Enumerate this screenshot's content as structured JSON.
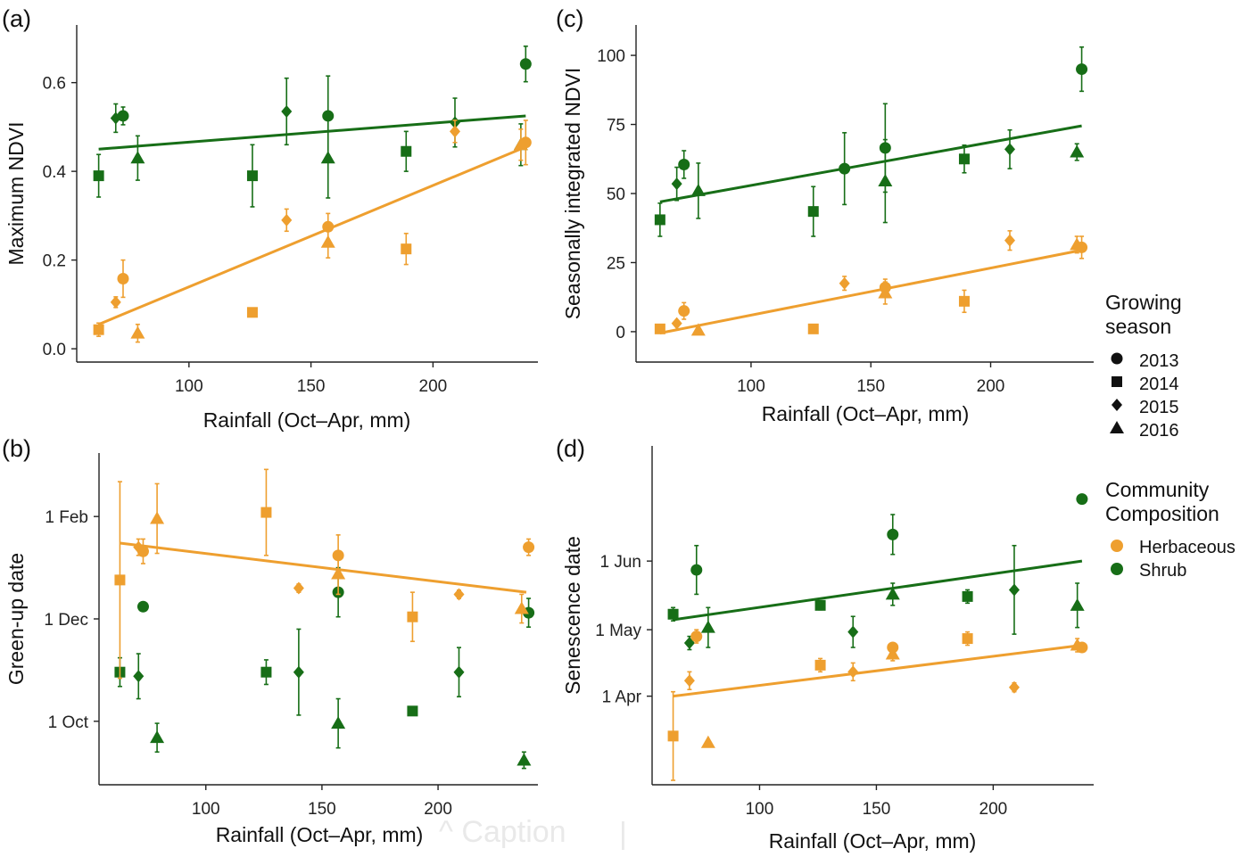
{
  "colors": {
    "herbaceous": "#EE9F2F",
    "shrub": "#176E17",
    "axis": "#222222"
  },
  "legend": {
    "season_title": "Growing\nseason",
    "season_items": [
      {
        "label": "2013",
        "shape": "circle"
      },
      {
        "label": "2014",
        "shape": "square"
      },
      {
        "label": "2015",
        "shape": "diamond"
      },
      {
        "label": "2016",
        "shape": "triangle"
      }
    ],
    "community_title": "Community\nComposition",
    "community_items": [
      {
        "label": "Herbaceous",
        "color_key": "herbaceous"
      },
      {
        "label": "Shrub",
        "color_key": "shrub"
      }
    ]
  },
  "overlay": {
    "caption_text": "^ Caption",
    "divider": "|"
  },
  "chart_data": [
    {
      "panel": "(a)",
      "type": "scatter",
      "xlabel": "Rainfall (Oct–Apr, mm)",
      "ylabel": "Maximum NDVI",
      "xlim": [
        54,
        243
      ],
      "ylim": [
        -0.03,
        0.73
      ],
      "xticks": [
        {
          "v": 100,
          "label": "100"
        },
        {
          "v": 150,
          "label": "150"
        },
        {
          "v": 200,
          "label": "200"
        }
      ],
      "yticks": [
        {
          "v": 0,
          "label": "0.0"
        },
        {
          "v": 0.2,
          "label": "0.2"
        },
        {
          "v": 0.4,
          "label": "0.4"
        },
        {
          "v": 0.6,
          "label": "0.6"
        }
      ],
      "series": [
        {
          "name": "Shrub",
          "color_key": "shrub",
          "points": [
            {
              "x": 63,
              "y": 0.39,
              "err": 0.048,
              "shape": "square"
            },
            {
              "x": 70,
              "y": 0.52,
              "err": 0.032,
              "shape": "diamond"
            },
            {
              "x": 73,
              "y": 0.525,
              "err": 0.02,
              "shape": "circle"
            },
            {
              "x": 79,
              "y": 0.43,
              "err": 0.05,
              "shape": "triangle"
            },
            {
              "x": 126,
              "y": 0.39,
              "err": 0.07,
              "shape": "square"
            },
            {
              "x": 140,
              "y": 0.535,
              "err": 0.075,
              "shape": "diamond"
            },
            {
              "x": 157,
              "y": 0.525,
              "err": 0.09,
              "shape": "circle"
            },
            {
              "x": 157,
              "y": 0.43,
              "err": 0.09,
              "shape": "triangle"
            },
            {
              "x": 189,
              "y": 0.445,
              "err": 0.045,
              "shape": "square"
            },
            {
              "x": 209,
              "y": 0.51,
              "err": 0.055,
              "shape": "diamond"
            },
            {
              "x": 238,
              "y": 0.642,
              "err": 0.04,
              "shape": "circle"
            },
            {
              "x": 236,
              "y": 0.46,
              "err": 0.047,
              "shape": "triangle"
            }
          ],
          "trend": [
            [
              63,
              0.45
            ],
            [
              238,
              0.525
            ]
          ]
        },
        {
          "name": "Herbaceous",
          "color_key": "herbaceous",
          "points": [
            {
              "x": 63,
              "y": 0.043,
              "err": 0.015,
              "shape": "square"
            },
            {
              "x": 70,
              "y": 0.105,
              "err": 0.012,
              "shape": "diamond"
            },
            {
              "x": 73,
              "y": 0.158,
              "err": 0.042,
              "shape": "circle"
            },
            {
              "x": 79,
              "y": 0.035,
              "err": 0.02,
              "shape": "triangle"
            },
            {
              "x": 126,
              "y": 0.082,
              "err": 0.01,
              "shape": "square"
            },
            {
              "x": 140,
              "y": 0.29,
              "err": 0.025,
              "shape": "diamond"
            },
            {
              "x": 157,
              "y": 0.275,
              "err": 0.03,
              "shape": "circle"
            },
            {
              "x": 157,
              "y": 0.24,
              "err": 0.035,
              "shape": "triangle"
            },
            {
              "x": 189,
              "y": 0.225,
              "err": 0.035,
              "shape": "square"
            },
            {
              "x": 209,
              "y": 0.49,
              "err": 0.025,
              "shape": "diamond"
            },
            {
              "x": 238,
              "y": 0.465,
              "err": 0.05,
              "shape": "circle"
            },
            {
              "x": 236,
              "y": 0.46,
              "err": 0.035,
              "shape": "triangle"
            }
          ],
          "trend": [
            [
              63,
              0.055
            ],
            [
              238,
              0.455
            ]
          ]
        }
      ]
    },
    {
      "panel": "(b)",
      "type": "scatter",
      "xlabel": "Rainfall (Oct–Apr, mm)",
      "ylabel": "Green-up date",
      "xlim": [
        54,
        243
      ],
      "ylim": [
        0,
        162
      ],
      "xticks": [
        {
          "v": 100,
          "label": "100"
        },
        {
          "v": 150,
          "label": "150"
        },
        {
          "v": 200,
          "label": "200"
        }
      ],
      "yticks": [
        {
          "v": 31,
          "label": "1 Oct"
        },
        {
          "v": 81,
          "label": "1 Dec"
        },
        {
          "v": 131,
          "label": "1 Feb"
        }
      ],
      "series": [
        {
          "name": "Shrub",
          "color_key": "shrub",
          "points": [
            {
              "x": 63,
              "y": 55,
              "err": 7,
              "shape": "square"
            },
            {
              "x": 71,
              "y": 53,
              "err": 11,
              "shape": "diamond"
            },
            {
              "x": 73,
              "y": 87,
              "err": 0,
              "shape": "circle"
            },
            {
              "x": 79,
              "y": 23,
              "err": 7,
              "shape": "triangle"
            },
            {
              "x": 126,
              "y": 55,
              "err": 6,
              "shape": "square"
            },
            {
              "x": 140,
              "y": 55,
              "err": 21,
              "shape": "diamond"
            },
            {
              "x": 157,
              "y": 94,
              "err": 12,
              "shape": "circle"
            },
            {
              "x": 157,
              "y": 30,
              "err": 12,
              "shape": "triangle"
            },
            {
              "x": 189,
              "y": 36,
              "err": 0,
              "shape": "square"
            },
            {
              "x": 209,
              "y": 55,
              "err": 12,
              "shape": "diamond"
            },
            {
              "x": 239,
              "y": 84,
              "err": 7,
              "shape": "circle"
            },
            {
              "x": 237,
              "y": 12,
              "err": 4,
              "shape": "triangle"
            }
          ]
        },
        {
          "name": "Herbaceous",
          "color_key": "herbaceous",
          "points": [
            {
              "x": 63,
              "y": 100,
              "err": 48,
              "shape": "square"
            },
            {
              "x": 71,
              "y": 116,
              "err": 4,
              "shape": "diamond"
            },
            {
              "x": 73,
              "y": 114,
              "err": 6,
              "shape": "circle"
            },
            {
              "x": 79,
              "y": 130,
              "err": 17,
              "shape": "triangle"
            },
            {
              "x": 126,
              "y": 133,
              "err": 21,
              "shape": "square"
            },
            {
              "x": 140,
              "y": 96,
              "err": 2,
              "shape": "diamond"
            },
            {
              "x": 157,
              "y": 112,
              "err": 10,
              "shape": "circle"
            },
            {
              "x": 157,
              "y": 103,
              "err": 10,
              "shape": "triangle"
            },
            {
              "x": 189,
              "y": 82,
              "err": 12,
              "shape": "square"
            },
            {
              "x": 209,
              "y": 93,
              "err": 2,
              "shape": "diamond"
            },
            {
              "x": 239,
              "y": 116,
              "err": 4,
              "shape": "circle"
            },
            {
              "x": 236,
              "y": 86,
              "err": 7,
              "shape": "triangle"
            }
          ],
          "trend": [
            [
              63,
              118
            ],
            [
              238,
              94
            ]
          ]
        }
      ]
    },
    {
      "panel": "(c)",
      "type": "scatter",
      "xlabel": "Rainfall (Oct–Apr, mm)",
      "ylabel": "Seasonally integrated  NDVI",
      "xlim": [
        52,
        243
      ],
      "ylim": [
        -11,
        111
      ],
      "xticks": [
        {
          "v": 100,
          "label": "100"
        },
        {
          "v": 150,
          "label": "150"
        },
        {
          "v": 200,
          "label": "200"
        }
      ],
      "yticks": [
        {
          "v": 0,
          "label": "0"
        },
        {
          "v": 25,
          "label": "25"
        },
        {
          "v": 50,
          "label": "50"
        },
        {
          "v": 75,
          "label": "75"
        },
        {
          "v": 100,
          "label": "100"
        }
      ],
      "series": [
        {
          "name": "Shrub",
          "color_key": "shrub",
          "points": [
            {
              "x": 62,
              "y": 40.5,
              "err": 6,
              "shape": "square"
            },
            {
              "x": 69,
              "y": 53.5,
              "err": 6,
              "shape": "diamond"
            },
            {
              "x": 72,
              "y": 60.5,
              "err": 5,
              "shape": "circle"
            },
            {
              "x": 78,
              "y": 51,
              "err": 10,
              "shape": "triangle"
            },
            {
              "x": 126,
              "y": 43.5,
              "err": 9,
              "shape": "square"
            },
            {
              "x": 139,
              "y": 59,
              "err": 13,
              "shape": "circle"
            },
            {
              "x": 156,
              "y": 66.5,
              "err": 16,
              "shape": "circle"
            },
            {
              "x": 156,
              "y": 54.5,
              "err": 15,
              "shape": "triangle"
            },
            {
              "x": 189,
              "y": 62.5,
              "err": 5,
              "shape": "square"
            },
            {
              "x": 208,
              "y": 66,
              "err": 7,
              "shape": "diamond"
            },
            {
              "x": 238,
              "y": 95,
              "err": 8,
              "shape": "circle"
            },
            {
              "x": 236,
              "y": 65,
              "err": 3,
              "shape": "triangle"
            }
          ],
          "trend": [
            [
              62,
              47
            ],
            [
              238,
              74.5
            ]
          ]
        },
        {
          "name": "Herbaceous",
          "color_key": "herbaceous",
          "points": [
            {
              "x": 62,
              "y": 1,
              "err": 1,
              "shape": "square"
            },
            {
              "x": 69,
              "y": 3,
              "err": 1,
              "shape": "diamond"
            },
            {
              "x": 72,
              "y": 7.5,
              "err": 3,
              "shape": "circle"
            },
            {
              "x": 78,
              "y": 0.5,
              "err": 1,
              "shape": "triangle"
            },
            {
              "x": 126,
              "y": 1,
              "err": 1,
              "shape": "square"
            },
            {
              "x": 139,
              "y": 17.5,
              "err": 2.5,
              "shape": "diamond"
            },
            {
              "x": 156,
              "y": 16,
              "err": 3,
              "shape": "circle"
            },
            {
              "x": 156,
              "y": 14,
              "err": 4,
              "shape": "triangle"
            },
            {
              "x": 189,
              "y": 11,
              "err": 4,
              "shape": "square"
            },
            {
              "x": 208,
              "y": 33,
              "err": 3.5,
              "shape": "diamond"
            },
            {
              "x": 238,
              "y": 30.5,
              "err": 4,
              "shape": "circle"
            },
            {
              "x": 236,
              "y": 31.5,
              "err": 3,
              "shape": "triangle"
            }
          ],
          "trend": [
            [
              62,
              -0.5
            ],
            [
              238,
              29.5
            ]
          ]
        }
      ]
    },
    {
      "panel": "(d)",
      "type": "scatter",
      "xlabel": "Rainfall (Oct–Apr, mm)",
      "ylabel": "Senescence date",
      "xlim": [
        54,
        243
      ],
      "ylim": [
        -40,
        113
      ],
      "xticks": [
        {
          "v": 100,
          "label": "100"
        },
        {
          "v": 150,
          "label": "150"
        },
        {
          "v": 200,
          "label": "200"
        }
      ],
      "yticks": [
        {
          "v": 0,
          "label": "1 Apr"
        },
        {
          "v": 30,
          "label": "1 May"
        },
        {
          "v": 61,
          "label": "1 Jun"
        }
      ],
      "series": [
        {
          "name": "Shrub",
          "color_key": "shrub",
          "points": [
            {
              "x": 63,
              "y": 37,
              "err": 3,
              "shape": "square"
            },
            {
              "x": 70,
              "y": 24,
              "err": 3,
              "shape": "diamond"
            },
            {
              "x": 73,
              "y": 57,
              "err": 11,
              "shape": "circle"
            },
            {
              "x": 78,
              "y": 31,
              "err": 9,
              "shape": "triangle"
            },
            {
              "x": 126,
              "y": 41,
              "err": 2,
              "shape": "square"
            },
            {
              "x": 140,
              "y": 29,
              "err": 7,
              "shape": "diamond"
            },
            {
              "x": 157,
              "y": 73,
              "err": 9,
              "shape": "circle"
            },
            {
              "x": 157,
              "y": 46,
              "err": 5,
              "shape": "triangle"
            },
            {
              "x": 189,
              "y": 45,
              "err": 3,
              "shape": "square"
            },
            {
              "x": 209,
              "y": 48,
              "err": 20,
              "shape": "diamond"
            },
            {
              "x": 238,
              "y": 89,
              "err": 0,
              "shape": "circle"
            },
            {
              "x": 236,
              "y": 41,
              "err": 10,
              "shape": "triangle"
            }
          ],
          "trend": [
            [
              63,
              34.5
            ],
            [
              238,
              61
            ]
          ]
        },
        {
          "name": "Herbaceous",
          "color_key": "herbaceous",
          "points": [
            {
              "x": 63,
              "y": -18,
              "err": 20,
              "shape": "square"
            },
            {
              "x": 70,
              "y": 7,
              "err": 4,
              "shape": "diamond"
            },
            {
              "x": 73,
              "y": 27,
              "err": 3,
              "shape": "circle"
            },
            {
              "x": 78,
              "y": -21,
              "err": 0,
              "shape": "triangle"
            },
            {
              "x": 126,
              "y": 14,
              "err": 3,
              "shape": "square"
            },
            {
              "x": 140,
              "y": 11,
              "err": 4,
              "shape": "diamond"
            },
            {
              "x": 157,
              "y": 22,
              "err": 2,
              "shape": "circle"
            },
            {
              "x": 157,
              "y": 19,
              "err": 3,
              "shape": "triangle"
            },
            {
              "x": 189,
              "y": 26,
              "err": 3,
              "shape": "square"
            },
            {
              "x": 209,
              "y": 4,
              "err": 2,
              "shape": "diamond"
            },
            {
              "x": 238,
              "y": 22,
              "err": 2,
              "shape": "circle"
            },
            {
              "x": 236,
              "y": 23,
              "err": 3,
              "shape": "triangle"
            }
          ],
          "trend": [
            [
              63,
              0
            ],
            [
              238,
              23
            ]
          ]
        }
      ]
    }
  ]
}
